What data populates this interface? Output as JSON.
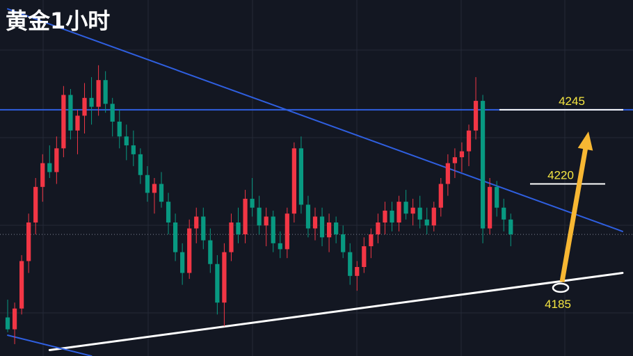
{
  "chart_title": "黄金1小时",
  "chart_data": {
    "type": "candlestick",
    "title": "黄金1小时",
    "timeframe": "1h",
    "colors": {
      "background": "#131722",
      "grid": "#252a37",
      "up": "#f23645",
      "down": "#089981",
      "trendline": "#2f5fe0",
      "support": "#ffffff",
      "annotation_text": "#f5e642",
      "arrow": "#f7b733"
    },
    "ylim": [
      4162,
      4282
    ],
    "horizontal_levels": [
      {
        "value": 4245,
        "label": "4245",
        "role": "resistance",
        "color": "#ffffff"
      },
      {
        "value": 4220,
        "label": "4220",
        "role": "target",
        "color": "#ffffff"
      },
      {
        "value": 4185,
        "label": "4185",
        "role": "support",
        "color": "#ffffff"
      }
    ],
    "long_horizontal_line": {
      "value": 4245,
      "color": "#2f5fe0"
    },
    "dotted_price_line": {
      "value": 4203
    },
    "trendlines": [
      {
        "name": "descending",
        "color": "#2f5fe0",
        "points": [
          [
            0,
            4279
          ],
          [
            88,
            4204
          ]
        ]
      },
      {
        "name": "ascending",
        "color": "#ffffff",
        "points": [
          [
            6,
            4164
          ],
          [
            88,
            4190
          ]
        ]
      },
      {
        "name": "lower-descending",
        "color": "#2f5fe0",
        "points": [
          [
            0,
            4169
          ],
          [
            12,
            4162
          ]
        ]
      }
    ],
    "arrow": {
      "from": [
        79,
        4187
      ],
      "to": [
        83,
        4233
      ],
      "color": "#f7b733"
    },
    "candles": [
      [
        4175,
        4181,
        4170,
        4171
      ],
      [
        4171,
        4180,
        4166,
        4178
      ],
      [
        4178,
        4196,
        4176,
        4194
      ],
      [
        4194,
        4210,
        4190,
        4207
      ],
      [
        4207,
        4222,
        4203,
        4219
      ],
      [
        4219,
        4230,
        4214,
        4227
      ],
      [
        4227,
        4233,
        4222,
        4224
      ],
      [
        4224,
        4236,
        4220,
        4232
      ],
      [
        4232,
        4253,
        4229,
        4250
      ],
      [
        4250,
        4252,
        4235,
        4238
      ],
      [
        4238,
        4245,
        4230,
        4243
      ],
      [
        4243,
        4254,
        4237,
        4249
      ],
      [
        4249,
        4256,
        4240,
        4246
      ],
      [
        4246,
        4260,
        4243,
        4255
      ],
      [
        4255,
        4258,
        4244,
        4247
      ],
      [
        4247,
        4249,
        4236,
        4241
      ],
      [
        4241,
        4245,
        4232,
        4236
      ],
      [
        4236,
        4240,
        4228,
        4233
      ],
      [
        4233,
        4238,
        4226,
        4230
      ],
      [
        4230,
        4232,
        4220,
        4223
      ],
      [
        4223,
        4226,
        4214,
        4217
      ],
      [
        4217,
        4222,
        4210,
        4220
      ],
      [
        4220,
        4224,
        4212,
        4214
      ],
      [
        4214,
        4217,
        4203,
        4207
      ],
      [
        4207,
        4210,
        4194,
        4197
      ],
      [
        4197,
        4200,
        4186,
        4190
      ],
      [
        4190,
        4208,
        4188,
        4205
      ],
      [
        4205,
        4212,
        4200,
        4209
      ],
      [
        4209,
        4212,
        4198,
        4201
      ],
      [
        4201,
        4205,
        4190,
        4193
      ],
      [
        4193,
        4196,
        4176,
        4180
      ],
      [
        4180,
        4200,
        4172,
        4197
      ],
      [
        4197,
        4210,
        4194,
        4207
      ],
      [
        4207,
        4212,
        4200,
        4203
      ],
      [
        4203,
        4218,
        4200,
        4215
      ],
      [
        4215,
        4222,
        4209,
        4212
      ],
      [
        4212,
        4216,
        4203,
        4206
      ],
      [
        4206,
        4212,
        4199,
        4209
      ],
      [
        4209,
        4211,
        4197,
        4200
      ],
      [
        4200,
        4204,
        4195,
        4198
      ],
      [
        4198,
        4212,
        4195,
        4210
      ],
      [
        4210,
        4234,
        4207,
        4232
      ],
      [
        4232,
        4236,
        4210,
        4213
      ],
      [
        4213,
        4216,
        4202,
        4205
      ],
      [
        4205,
        4212,
        4201,
        4209
      ],
      [
        4209,
        4212,
        4199,
        4202
      ],
      [
        4202,
        4210,
        4197,
        4207
      ],
      [
        4207,
        4209,
        4200,
        4203
      ],
      [
        4203,
        4206,
        4195,
        4197
      ],
      [
        4197,
        4200,
        4186,
        4189
      ],
      [
        4189,
        4194,
        4184,
        4192
      ],
      [
        4192,
        4202,
        4190,
        4199
      ],
      [
        4199,
        4205,
        4195,
        4203
      ],
      [
        4203,
        4210,
        4200,
        4207
      ],
      [
        4207,
        4214,
        4203,
        4211
      ],
      [
        4211,
        4214,
        4204,
        4207
      ],
      [
        4207,
        4216,
        4204,
        4214
      ],
      [
        4214,
        4218,
        4208,
        4210
      ],
      [
        4210,
        4215,
        4206,
        4212
      ],
      [
        4212,
        4216,
        4205,
        4208
      ],
      [
        4208,
        4212,
        4203,
        4206
      ],
      [
        4206,
        4214,
        4204,
        4212
      ],
      [
        4212,
        4222,
        4209,
        4220
      ],
      [
        4220,
        4230,
        4216,
        4227
      ],
      [
        4227,
        4232,
        4222,
        4229
      ],
      [
        4229,
        4234,
        4224,
        4231
      ],
      [
        4231,
        4240,
        4226,
        4238
      ],
      [
        4238,
        4256,
        4235,
        4248
      ],
      [
        4248,
        4250,
        4200,
        4205
      ],
      [
        4205,
        4222,
        4203,
        4219
      ],
      [
        4219,
        4221,
        4209,
        4212
      ],
      [
        4212,
        4215,
        4204,
        4208
      ],
      [
        4208,
        4210,
        4199,
        4203
      ]
    ]
  }
}
